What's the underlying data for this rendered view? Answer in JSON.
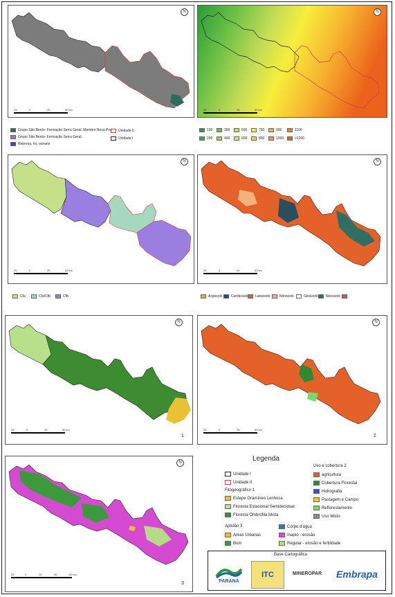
{
  "maps": {
    "geology": {
      "north": "N",
      "scale": [
        "25",
        "0",
        "25",
        "50 km"
      ]
    },
    "elevation": {
      "north": "N",
      "scale": [
        "25",
        "0",
        "25",
        "50 km"
      ]
    },
    "climate": {
      "north": "N",
      "scale": [
        "25",
        "0",
        "25",
        "50 km"
      ]
    },
    "soils": {
      "north": "N",
      "scale": [
        "25",
        "0",
        "25",
        "50 km"
      ]
    },
    "phyto": {
      "north": "N",
      "scale": [
        "25",
        "0",
        "25",
        "50 km"
      ],
      "number": "1"
    },
    "landuse": {
      "north": "N",
      "scale": [
        "25",
        "0",
        "25",
        "50 km"
      ],
      "number": "2"
    },
    "aptitude": {
      "north": "N",
      "scale": [
        "20",
        "0",
        "20",
        "40",
        "60 km"
      ],
      "number": "3"
    }
  },
  "legends": {
    "geology": [
      {
        "label": "Grupo São Bento- Formação Serra Geral. Membro Nova Prata.",
        "color": "#2e6b5a"
      },
      {
        "label": "Grupo São Bento- Formação Serra Geral.",
        "color": "#8c7fb0"
      },
      {
        "label": "Represa, rio, oceano",
        "color": "#4a3cc0"
      }
    ],
    "units": [
      {
        "label": "Unidade II",
        "color": "#d43c3c"
      },
      {
        "label": "Unidade I",
        "color": "#222222"
      }
    ],
    "elevation": [
      {
        "label": "100",
        "color": "#2a9a3a"
      },
      {
        "label": "200",
        "color": "#3daa3d"
      },
      {
        "label": "300",
        "color": "#6dc046"
      },
      {
        "label": "400",
        "color": "#9ad04f"
      },
      {
        "label": "500",
        "color": "#c5dc55"
      },
      {
        "label": "600",
        "color": "#e0e85a"
      },
      {
        "label": "700",
        "color": "#f7ee3c"
      },
      {
        "label": "800",
        "color": "#f8d23a"
      },
      {
        "label": "900",
        "color": "#f7b531"
      },
      {
        "label": "1000",
        "color": "#f49a2a"
      },
      {
        "label": "1100",
        "color": "#f07e22"
      },
      {
        "label": ">1200",
        "color": "#ec611b"
      }
    ],
    "climate": [
      {
        "label": "Cfa",
        "color": "#c6e08a"
      },
      {
        "label": "Cfa/Cfb",
        "color": "#a6d8c0"
      },
      {
        "label": "Cfb",
        "color": "#9b7fe0"
      }
    ],
    "soils": [
      {
        "label": "Argissolo",
        "color": "#e0b42a"
      },
      {
        "label": "Cambissolo",
        "color": "#274f5e"
      },
      {
        "label": "Latossolo",
        "color": "#e4622a"
      },
      {
        "label": "Nitossolo",
        "color": "#f2b27a"
      },
      {
        "label": "Gleissolo",
        "color": "#ffffff"
      },
      {
        "label": "Neossolo",
        "color": "#2f6e63"
      },
      {
        "label": "",
        "color": "#e05050"
      }
    ]
  },
  "main_legend": {
    "title": "Legenda",
    "unidade1": "Unidade I",
    "unidade2": "Unidade II",
    "fito_title": "Fitogeográfico 1",
    "fito": [
      {
        "label": "Estepe Gramíneo Lenhosa",
        "color": "#e8c234"
      },
      {
        "label": "Floresta Estacional Semidecidual",
        "color": "#b8e08a"
      },
      {
        "label": "Floresta Ombrófila Mista",
        "color": "#3e8c32"
      }
    ],
    "uso_title": "Uso e cobertura 2",
    "uso": [
      {
        "label": "agricultura",
        "color": "#e4622a"
      },
      {
        "label": "Cobertura Florestal",
        "color": "#2f8a2f"
      },
      {
        "label": "Hidrografia",
        "color": "#3a4fd0"
      },
      {
        "label": "Pastagem e Campo",
        "color": "#f0c040"
      },
      {
        "label": "Reflorestamento",
        "color": "#6edc6e"
      },
      {
        "label": "Uso Misto",
        "color": "#8c8c8c"
      }
    ],
    "apt_title": "Aptidão 3",
    "apt_left": [
      {
        "label": "Areas Urbanas",
        "color": "#e8c030"
      },
      {
        "label": "Bom",
        "color": "#3c9a3c"
      }
    ],
    "apt_right": [
      {
        "label": "Corpo d'água",
        "color": "#2a7ac0"
      },
      {
        "label": "Inapto - erosão",
        "color": "#d44ad0"
      },
      {
        "label": "Regular - erosão e fertilidade",
        "color": "#b8d88a"
      }
    ]
  },
  "base": {
    "title": "Base Cartográfica",
    "logos": [
      "PARANÁ",
      "ITC",
      "MINEROPAR",
      "Embrapa"
    ]
  }
}
